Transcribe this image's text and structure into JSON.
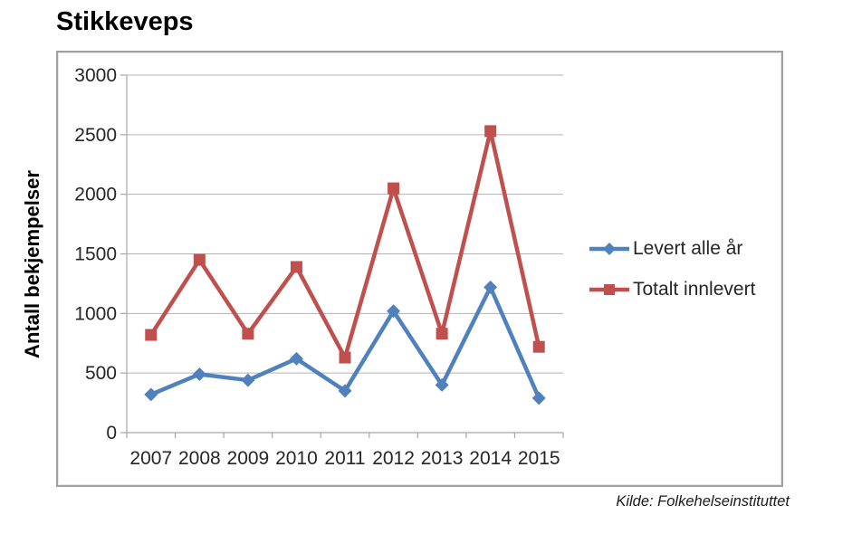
{
  "chart_data": {
    "type": "line",
    "title": "Stikkeveps",
    "categories": [
      "2007",
      "2008",
      "2009",
      "2010",
      "2011",
      "2012",
      "2013",
      "2014",
      "2015"
    ],
    "series": [
      {
        "name": "Levert alle år",
        "color": "#4f81bd",
        "marker": "diamond",
        "values": [
          320,
          490,
          440,
          620,
          350,
          1020,
          400,
          1220,
          290
        ]
      },
      {
        "name": "Totalt innlevert",
        "color": "#c0504d",
        "marker": "square",
        "values": [
          820,
          1450,
          830,
          1390,
          630,
          2050,
          830,
          2530,
          720
        ]
      }
    ],
    "xlabel": "",
    "ylabel": "Antall bekjempelser",
    "ylim": [
      0,
      3000
    ],
    "ytick_step": 500,
    "yticks": [
      0,
      500,
      1000,
      1500,
      2000,
      2500,
      3000
    ],
    "grid": true,
    "legend_position": "right-inside",
    "source": "Kilde: Folkehelseinstituttet",
    "axis_color": "#a6a6a6",
    "grid_color": "#b3b3b3",
    "text_color": "#262626"
  }
}
